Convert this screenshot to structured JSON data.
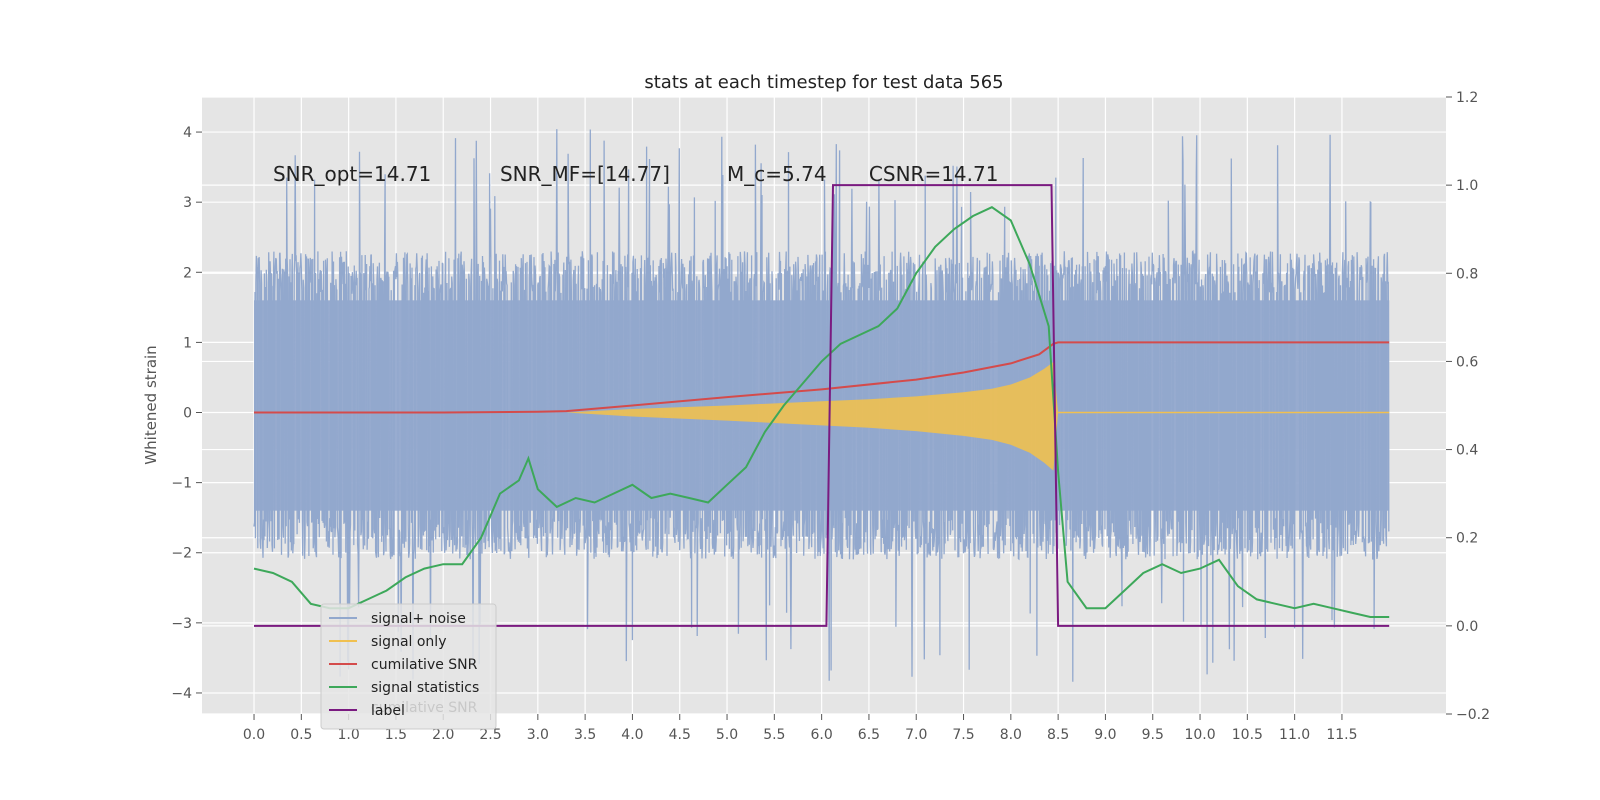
{
  "chart_data": {
    "type": "line",
    "title": "stats at each timestep for test data 565",
    "ylabel": "Whitened strain",
    "xlabel": "",
    "xlim": [
      -0.55,
      12.6
    ],
    "ylim": [
      -4.3,
      4.5
    ],
    "y2lim": [
      -0.2,
      1.2
    ],
    "grid": true,
    "legend_position": "lower-left",
    "x_ticks": [
      "0.0",
      "0.5",
      "1.0",
      "1.5",
      "2.0",
      "2.5",
      "3.0",
      "3.5",
      "4.0",
      "4.5",
      "5.0",
      "5.5",
      "6.0",
      "6.5",
      "7.0",
      "7.5",
      "8.0",
      "8.5",
      "9.0",
      "9.5",
      "10.0",
      "10.5",
      "11.0",
      "11.5"
    ],
    "y_ticks": [
      "4",
      "3",
      "2",
      "1",
      "0",
      "−1",
      "−2",
      "−3",
      "−4"
    ],
    "y2_ticks": [
      "1.2",
      "1.0",
      "0.8",
      "0.6",
      "0.4",
      "0.2",
      "0.0",
      "−0.2"
    ],
    "annotations": [
      {
        "text": "SNR_opt=14.71",
        "x": 0.2,
        "y": 3.3
      },
      {
        "text": "SNR_MF=[14.77]",
        "x": 2.6,
        "y": 3.3
      },
      {
        "text": "M_c=5.74",
        "x": 5.0,
        "y": 3.3
      },
      {
        "text": "CSNR=14.71",
        "x": 6.5,
        "y": 3.3
      }
    ],
    "noise_band": {
      "typical_low": -1.8,
      "typical_high": 2.0,
      "extreme_low": -3.9,
      "extreme_high": 4.1
    },
    "series": [
      {
        "name": "signal+ noise",
        "color": "#92a8cd",
        "axis": "left",
        "x": [
          0,
          12
        ],
        "note_values": "dense whitened-noise trace"
      },
      {
        "name": "signal only",
        "color": "#f0c050",
        "axis": "left",
        "envelope_x": [
          3.3,
          4.0,
          5.0,
          6.0,
          6.5,
          7.0,
          7.5,
          7.8,
          8.0,
          8.2,
          8.35,
          8.45,
          8.5
        ],
        "envelope_y": [
          0.0,
          0.05,
          0.1,
          0.16,
          0.19,
          0.23,
          0.29,
          0.34,
          0.4,
          0.5,
          0.62,
          0.72,
          0.0
        ]
      },
      {
        "name": "cumilative SNR",
        "color": "#d44b4b",
        "axis": "left",
        "x": [
          0,
          1,
          2,
          3,
          3.3,
          4,
          5,
          6,
          7,
          7.5,
          8,
          8.3,
          8.45,
          8.5,
          12
        ],
        "y": [
          0.0,
          0.0,
          0.0,
          0.01,
          0.02,
          0.1,
          0.22,
          0.33,
          0.47,
          0.57,
          0.7,
          0.83,
          0.98,
          1.0,
          1.0
        ]
      },
      {
        "name": "signal statistics",
        "color": "#3da85a",
        "axis": "right",
        "x": [
          0.0,
          0.2,
          0.4,
          0.6,
          0.8,
          1.0,
          1.2,
          1.4,
          1.6,
          1.8,
          2.0,
          2.2,
          2.4,
          2.6,
          2.8,
          2.9,
          3.0,
          3.2,
          3.4,
          3.6,
          3.8,
          4.0,
          4.2,
          4.4,
          4.6,
          4.8,
          5.0,
          5.2,
          5.4,
          5.6,
          5.8,
          6.0,
          6.2,
          6.4,
          6.6,
          6.8,
          7.0,
          7.2,
          7.4,
          7.6,
          7.8,
          8.0,
          8.2,
          8.4,
          8.5,
          8.6,
          8.8,
          9.0,
          9.2,
          9.4,
          9.6,
          9.8,
          10.0,
          10.2,
          10.4,
          10.6,
          10.8,
          11.0,
          11.2,
          11.4,
          11.6,
          11.8,
          12.0
        ],
        "y": [
          0.13,
          0.12,
          0.1,
          0.05,
          0.04,
          0.04,
          0.06,
          0.08,
          0.11,
          0.13,
          0.14,
          0.14,
          0.2,
          0.3,
          0.33,
          0.38,
          0.31,
          0.27,
          0.29,
          0.28,
          0.3,
          0.32,
          0.29,
          0.3,
          0.29,
          0.28,
          0.32,
          0.36,
          0.44,
          0.5,
          0.55,
          0.6,
          0.64,
          0.66,
          0.68,
          0.72,
          0.8,
          0.86,
          0.9,
          0.93,
          0.95,
          0.92,
          0.82,
          0.68,
          0.35,
          0.1,
          0.04,
          0.04,
          0.08,
          0.12,
          0.14,
          0.12,
          0.13,
          0.15,
          0.09,
          0.06,
          0.05,
          0.04,
          0.05,
          0.04,
          0.03,
          0.02,
          0.02
        ]
      },
      {
        "name": "label",
        "color": "#7a1a80",
        "axis": "right",
        "x": [
          0,
          6.05,
          6.12,
          8.43,
          8.5,
          12
        ],
        "y": [
          0,
          0,
          1,
          1,
          0,
          0
        ]
      }
    ],
    "legend_entries": [
      {
        "name": "signal+ noise",
        "color": "#92a8cd"
      },
      {
        "name": "signal only",
        "color": "#f0c050"
      },
      {
        "name": "cumilative SNR",
        "color": "#d44b4b"
      },
      {
        "name": "signal statistics",
        "color": "#3da85a"
      },
      {
        "name": "label",
        "color": "#7a1a80"
      }
    ],
    "legend_ghost_text": "cumilative SNR"
  }
}
